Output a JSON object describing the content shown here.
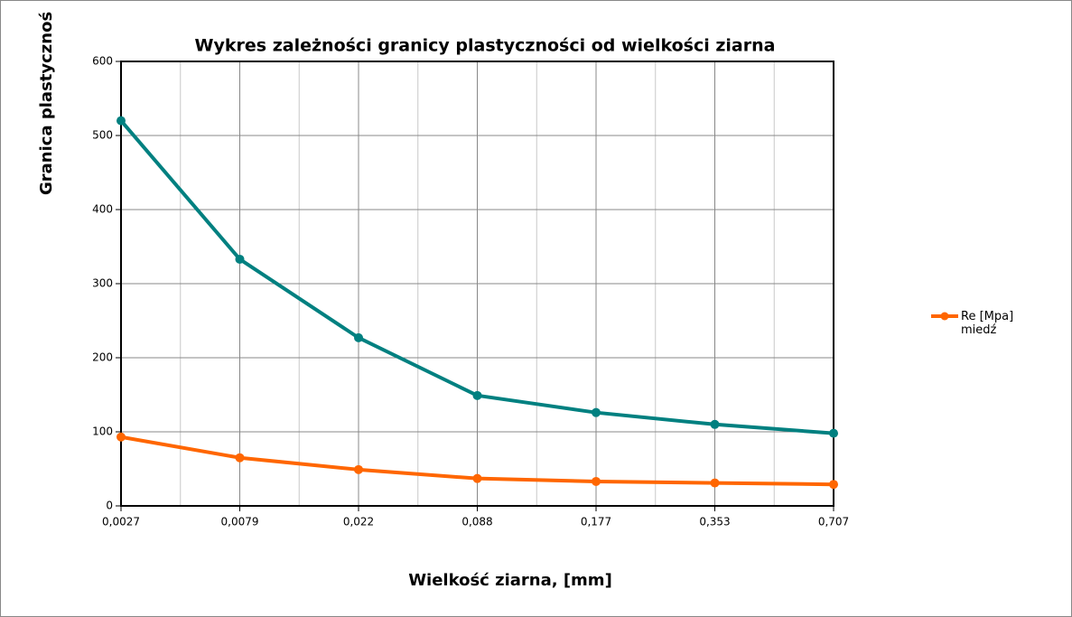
{
  "chart_data": {
    "type": "line",
    "title": "Wykres zależności granicy plastyczności od wielkości ziarna",
    "x_label": "Wielkość ziarna, [mm]",
    "y_label": "Granica plastycznoś",
    "categories": [
      "0,0027",
      "0,0079",
      "0,022",
      "0,088",
      "0,177",
      "0,353",
      "0,707"
    ],
    "series": [
      {
        "color": "#008080",
        "values": [
          520,
          333,
          227,
          149,
          126,
          110,
          98
        ]
      },
      {
        "name": "Re [Mpa] miedź",
        "color": "#ff6600",
        "values": [
          93,
          65,
          49,
          37,
          33,
          31,
          29
        ]
      }
    ],
    "ylim": [
      0,
      600
    ],
    "yticks": [
      0,
      100,
      200,
      300,
      400,
      500,
      600
    ],
    "grid": true,
    "legend": "right"
  }
}
